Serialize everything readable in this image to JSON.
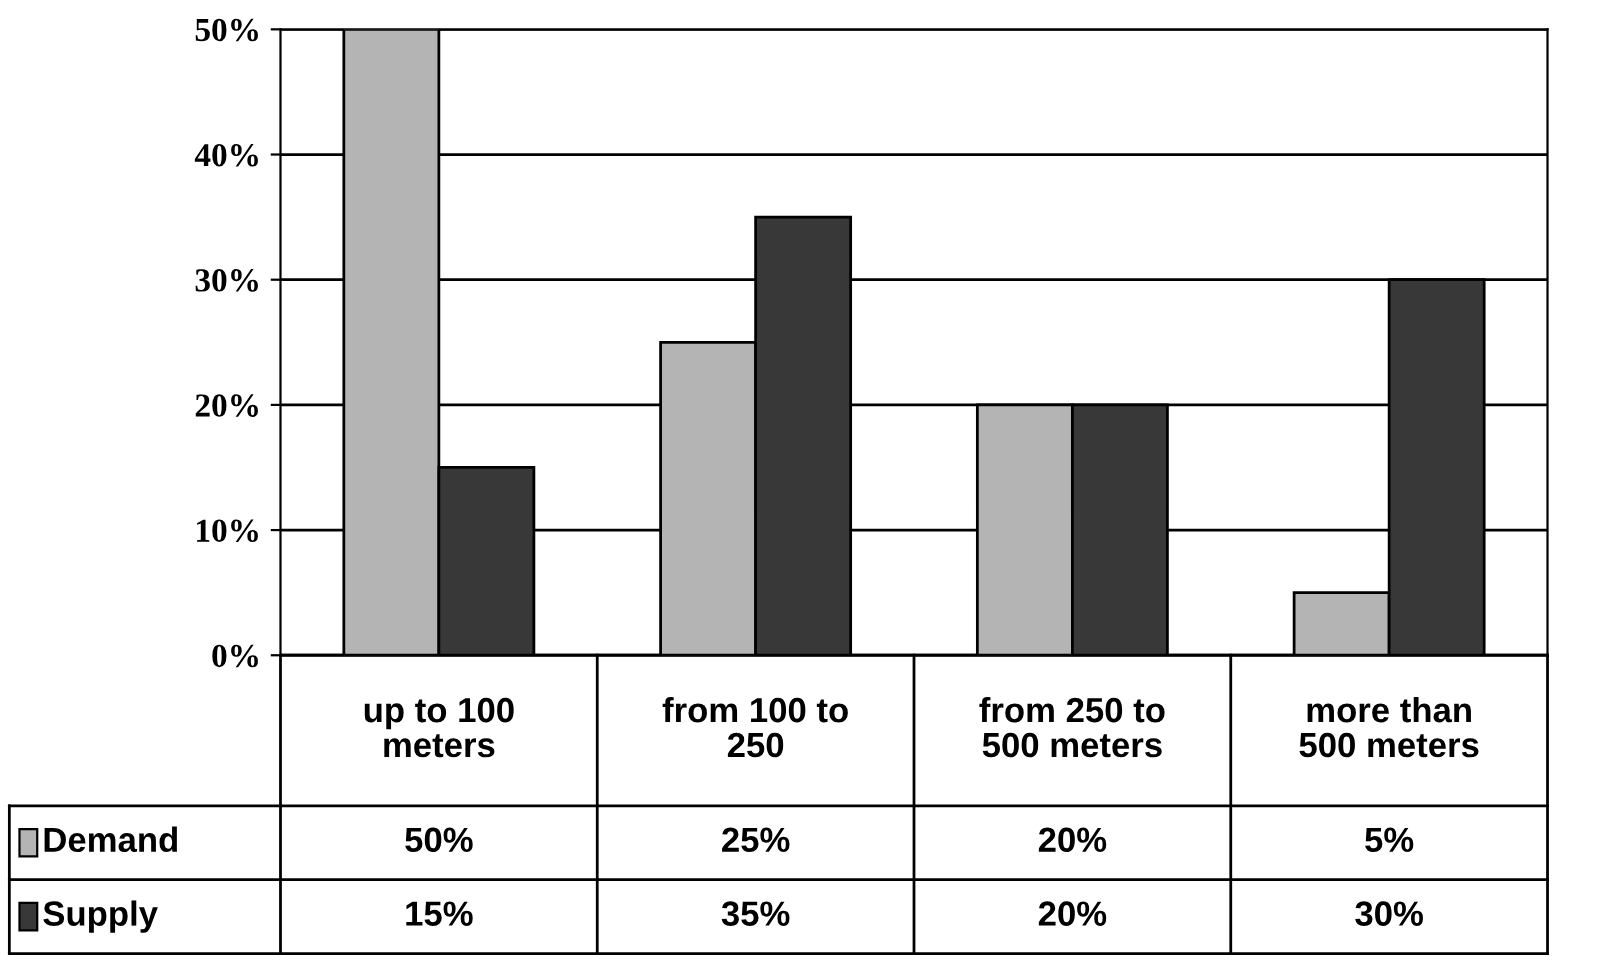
{
  "chart_data": {
    "type": "bar",
    "categories": [
      "up to 100\nmeters",
      "from 100 to\n250",
      "from 250 to\n500 meters",
      "more than\n500 meters"
    ],
    "series": [
      {
        "name": "Demand",
        "color": "#b4b4b4",
        "values": [
          50,
          25,
          20,
          5
        ],
        "value_labels": [
          "50%",
          "25%",
          "20%",
          "5%"
        ]
      },
      {
        "name": "Supply",
        "color": "#383838",
        "values": [
          15,
          35,
          20,
          30
        ],
        "value_labels": [
          "15%",
          "35%",
          "20%",
          "30%"
        ]
      }
    ],
    "ylim": [
      0,
      50
    ],
    "yticks": [
      {
        "value": 0,
        "label": "0%"
      },
      {
        "value": 10,
        "label": "10%"
      },
      {
        "value": 20,
        "label": "20%"
      },
      {
        "value": 30,
        "label": "30%"
      },
      {
        "value": 40,
        "label": "40%"
      },
      {
        "value": 50,
        "label": "50%"
      }
    ],
    "grid": "y",
    "legend": "bottom left"
  }
}
